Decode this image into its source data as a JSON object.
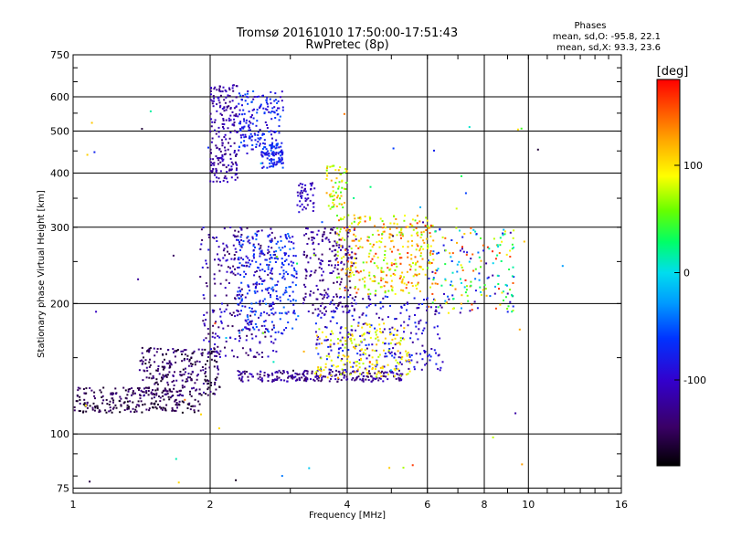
{
  "chart_data": {
    "type": "scatter",
    "title": "Tromsø 20161010 17:50:00-17:51:43",
    "subtitle": "RwPretec (8p)",
    "xlabel": "Frequency [MHz]",
    "ylabel": "Stationary phase Virtual Height [km]",
    "x_scale": "log",
    "y_scale": "log",
    "xlim": [
      1,
      16
    ],
    "ylim": [
      73,
      750
    ],
    "x_ticks": [
      1,
      2,
      4,
      6,
      8,
      10,
      16
    ],
    "x_tick_labels": [
      "1",
      "2",
      "4",
      "6",
      "8",
      "10",
      "16"
    ],
    "y_ticks": [
      75,
      100,
      200,
      300,
      400,
      500,
      600,
      750
    ],
    "y_tick_labels": [
      "75",
      "100",
      "200",
      "300",
      "400",
      "500",
      "600",
      "750"
    ],
    "grid": true,
    "stats": {
      "heading": "Phases",
      "line_o": "mean, sd,O: -95.8, 22.1",
      "line_x": "mean, sd,X:  93.3, 23.6"
    },
    "colorbar": {
      "unit_label": "[deg]",
      "range": [
        -180,
        180
      ],
      "tick_values": [
        100,
        0,
        -100
      ],
      "tick_labels": [
        "100",
        "0",
        "-100"
      ]
    },
    "clusters": [
      {
        "x0": 1.0,
        "x1": 1.9,
        "y0": 112,
        "y1": 120,
        "phase_min": -175,
        "phase_max": -135,
        "count": 140
      },
      {
        "x0": 1.0,
        "x1": 1.7,
        "y0": 120,
        "y1": 128,
        "phase_min": -170,
        "phase_max": -130,
        "count": 90
      },
      {
        "x0": 1.4,
        "x1": 2.1,
        "y0": 122,
        "y1": 158,
        "phase_min": -170,
        "phase_max": -120,
        "count": 260
      },
      {
        "x0": 1.9,
        "x1": 2.8,
        "y0": 150,
        "y1": 300,
        "phase_min": -150,
        "phase_max": -85,
        "count": 280
      },
      {
        "x0": 2.0,
        "x1": 2.3,
        "y0": 380,
        "y1": 640,
        "phase_min": -140,
        "phase_max": -95,
        "count": 200
      },
      {
        "x0": 2.3,
        "x1": 2.9,
        "y0": 440,
        "y1": 620,
        "phase_min": -110,
        "phase_max": -45,
        "count": 190
      },
      {
        "x0": 2.6,
        "x1": 2.9,
        "y0": 410,
        "y1": 470,
        "phase_min": -95,
        "phase_max": -50,
        "count": 80
      },
      {
        "x0": 2.3,
        "x1": 3.1,
        "y0": 170,
        "y1": 290,
        "phase_min": -100,
        "phase_max": -40,
        "count": 260
      },
      {
        "x0": 2.3,
        "x1": 5.3,
        "y0": 132,
        "y1": 140,
        "phase_min": -150,
        "phase_max": -100,
        "count": 240
      },
      {
        "x0": 3.1,
        "x1": 3.4,
        "y0": 325,
        "y1": 380,
        "phase_min": -120,
        "phase_max": -90,
        "count": 45
      },
      {
        "x0": 3.2,
        "x1": 4.2,
        "y0": 190,
        "y1": 300,
        "phase_min": -150,
        "phase_max": -100,
        "count": 200
      },
      {
        "x0": 3.6,
        "x1": 4.0,
        "y0": 330,
        "y1": 420,
        "phase_min": 40,
        "phase_max": 130,
        "count": 60
      },
      {
        "x0": 3.8,
        "x1": 6.2,
        "y0": 210,
        "y1": 320,
        "phase_min": 50,
        "phase_max": 170,
        "count": 340
      },
      {
        "x0": 3.4,
        "x1": 6.5,
        "y0": 140,
        "y1": 210,
        "phase_min": -130,
        "phase_max": -60,
        "count": 260
      },
      {
        "x0": 3.4,
        "x1": 5.5,
        "y0": 135,
        "y1": 180,
        "phase_min": 70,
        "phase_max": 120,
        "count": 180
      },
      {
        "x0": 6.0,
        "x1": 9.3,
        "y0": 190,
        "y1": 300,
        "phase_min": -120,
        "phase_max": 170,
        "count": 190
      },
      {
        "x0": 1.0,
        "x1": 12.0,
        "y0": 75,
        "y1": 600,
        "phase_min": -170,
        "phase_max": 170,
        "count": 60
      }
    ]
  }
}
